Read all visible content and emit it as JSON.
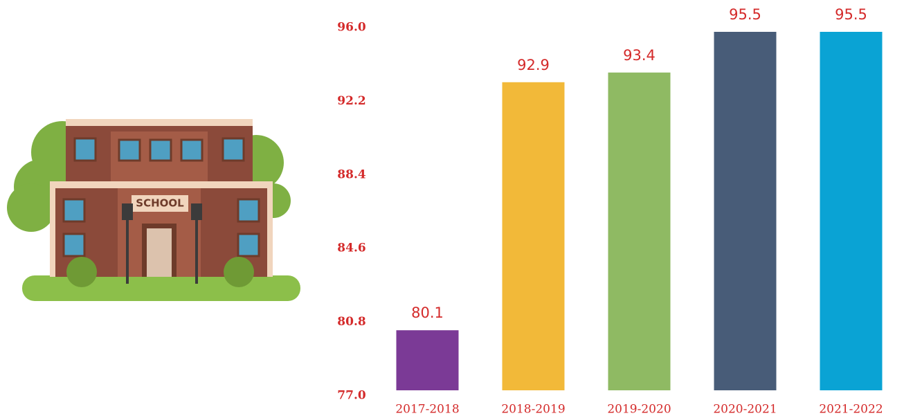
{
  "illustration": {
    "sign": "SCHOOL"
  },
  "chart_data": {
    "type": "bar",
    "categories": [
      "2017-2018",
      "2018-2019",
      "2019-2020",
      "2020-2021",
      "2021-2022"
    ],
    "values": [
      80.1,
      92.9,
      93.4,
      95.5,
      95.5
    ],
    "colors": [
      "#7b3a96",
      "#f2b939",
      "#8fba63",
      "#485c78",
      "#0aa3d4"
    ],
    "ylim": [
      77,
      96
    ],
    "yticks": [
      {
        "value": 77,
        "label": "77.0"
      },
      80.8,
      84.6,
      88.4,
      92.2,
      {
        "value": 96,
        "label": "96.0"
      }
    ],
    "grid": false
  }
}
